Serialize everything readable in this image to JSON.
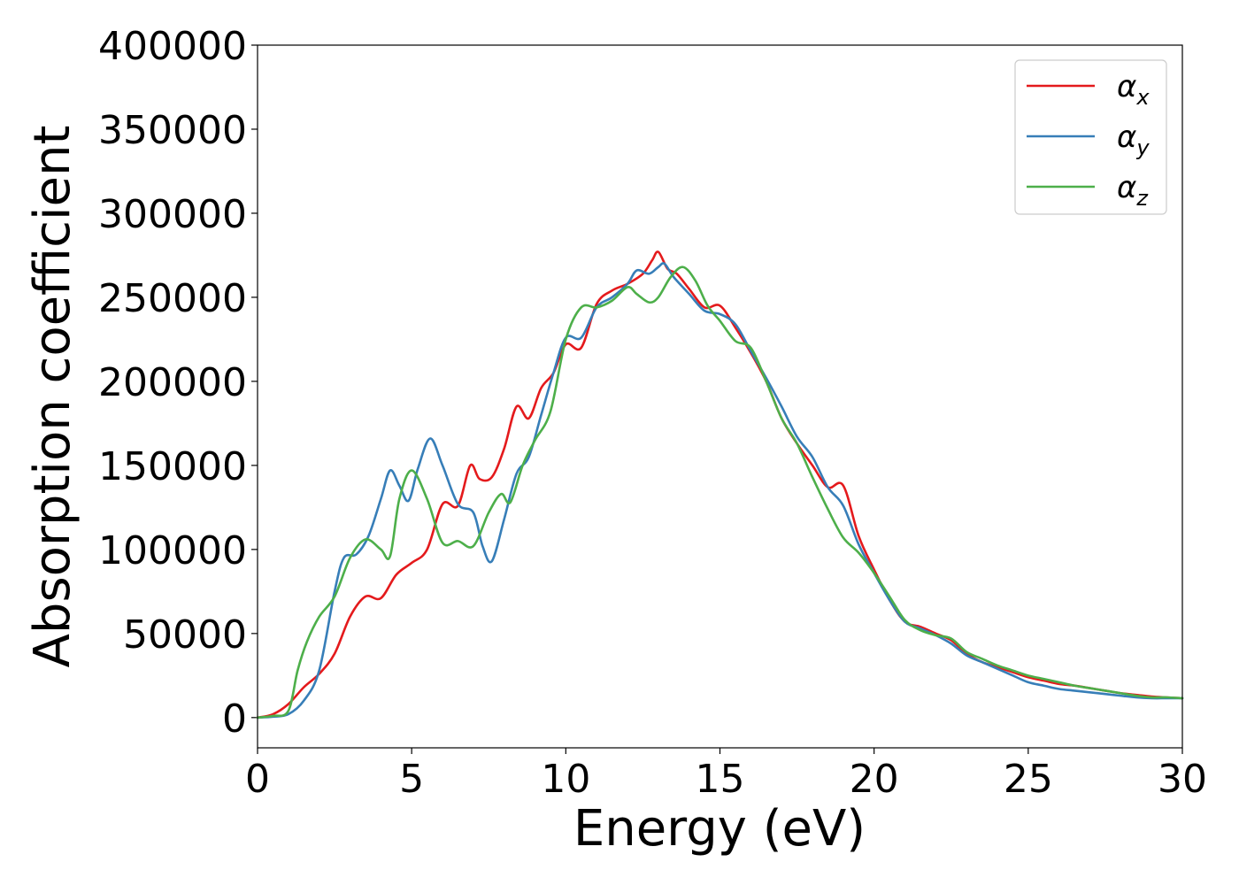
{
  "chart_data": {
    "type": "line",
    "title": "",
    "xlabel": "Energy (eV)",
    "ylabel": "Absorption coefficient",
    "xlim": [
      0,
      30
    ],
    "ylim": [
      -18000,
      400000
    ],
    "xticks": [
      0,
      5,
      10,
      15,
      20,
      25,
      30
    ],
    "yticks": [
      0,
      50000,
      100000,
      150000,
      200000,
      250000,
      300000,
      350000,
      400000
    ],
    "grid": false,
    "legend_position": "top-right",
    "series": [
      {
        "name": "α_x",
        "label_base": "α",
        "label_sub": "x",
        "color": "#e41a1c",
        "points": [
          [
            0,
            0
          ],
          [
            0.5,
            2000
          ],
          [
            1,
            8000
          ],
          [
            1.5,
            18000
          ],
          [
            2,
            26000
          ],
          [
            2.5,
            38000
          ],
          [
            3,
            60000
          ],
          [
            3.5,
            72000
          ],
          [
            4,
            71000
          ],
          [
            4.5,
            85000
          ],
          [
            5,
            92000
          ],
          [
            5.5,
            100000
          ],
          [
            6,
            127000
          ],
          [
            6.5,
            126000
          ],
          [
            6.9,
            150000
          ],
          [
            7.2,
            142000
          ],
          [
            7.6,
            143000
          ],
          [
            8,
            160000
          ],
          [
            8.4,
            185000
          ],
          [
            8.8,
            178000
          ],
          [
            9.2,
            196000
          ],
          [
            9.6,
            205000
          ],
          [
            10,
            222000
          ],
          [
            10.5,
            220000
          ],
          [
            11,
            246000
          ],
          [
            11.5,
            254000
          ],
          [
            12,
            258000
          ],
          [
            12.5,
            264000
          ],
          [
            12.8,
            272000
          ],
          [
            13,
            277000
          ],
          [
            13.3,
            267000
          ],
          [
            13.6,
            264000
          ],
          [
            14,
            255000
          ],
          [
            14.5,
            244000
          ],
          [
            15,
            245000
          ],
          [
            15.5,
            232000
          ],
          [
            16,
            217000
          ],
          [
            16.5,
            200000
          ],
          [
            17,
            178000
          ],
          [
            17.5,
            163000
          ],
          [
            18,
            150000
          ],
          [
            18.5,
            137000
          ],
          [
            19,
            138000
          ],
          [
            19.5,
            108000
          ],
          [
            20,
            88000
          ],
          [
            20.5,
            70000
          ],
          [
            21,
            57000
          ],
          [
            21.5,
            54000
          ],
          [
            22,
            50000
          ],
          [
            22.5,
            46000
          ],
          [
            23,
            38000
          ],
          [
            23.5,
            33000
          ],
          [
            24,
            30000
          ],
          [
            24.5,
            27000
          ],
          [
            25,
            24000
          ],
          [
            25.5,
            22000
          ],
          [
            26,
            20000
          ],
          [
            26.5,
            19000
          ],
          [
            27,
            17500
          ],
          [
            27.5,
            16000
          ],
          [
            28,
            14500
          ],
          [
            28.5,
            13500
          ],
          [
            29,
            12500
          ],
          [
            29.5,
            12000
          ],
          [
            30,
            11500
          ]
        ]
      },
      {
        "name": "α_y",
        "label_base": "α",
        "label_sub": "y",
        "color": "#377eb8",
        "points": [
          [
            0,
            0
          ],
          [
            0.5,
            500
          ],
          [
            1,
            2000
          ],
          [
            1.5,
            10000
          ],
          [
            2,
            28000
          ],
          [
            2.5,
            75000
          ],
          [
            2.8,
            95000
          ],
          [
            3.2,
            97000
          ],
          [
            3.6,
            108000
          ],
          [
            4,
            130000
          ],
          [
            4.3,
            147000
          ],
          [
            4.6,
            138000
          ],
          [
            4.9,
            129000
          ],
          [
            5.2,
            148000
          ],
          [
            5.6,
            166000
          ],
          [
            6,
            150000
          ],
          [
            6.5,
            127000
          ],
          [
            7,
            122000
          ],
          [
            7.3,
            102000
          ],
          [
            7.6,
            93000
          ],
          [
            8,
            118000
          ],
          [
            8.4,
            145000
          ],
          [
            8.8,
            155000
          ],
          [
            9.2,
            180000
          ],
          [
            9.6,
            205000
          ],
          [
            10,
            226000
          ],
          [
            10.5,
            226000
          ],
          [
            11,
            244000
          ],
          [
            11.5,
            250000
          ],
          [
            12,
            258000
          ],
          [
            12.3,
            266000
          ],
          [
            12.7,
            264000
          ],
          [
            13,
            268000
          ],
          [
            13.2,
            270000
          ],
          [
            13.5,
            262000
          ],
          [
            14,
            252000
          ],
          [
            14.5,
            242000
          ],
          [
            15,
            240000
          ],
          [
            15.5,
            234000
          ],
          [
            16,
            218000
          ],
          [
            16.5,
            202000
          ],
          [
            17,
            185000
          ],
          [
            17.5,
            167000
          ],
          [
            18,
            155000
          ],
          [
            18.5,
            137000
          ],
          [
            19,
            126000
          ],
          [
            19.5,
            103000
          ],
          [
            20,
            86000
          ],
          [
            20.5,
            70000
          ],
          [
            21,
            57000
          ],
          [
            21.5,
            53000
          ],
          [
            22,
            49000
          ],
          [
            22.5,
            44000
          ],
          [
            23,
            37000
          ],
          [
            23.5,
            33000
          ],
          [
            24,
            29000
          ],
          [
            24.5,
            25000
          ],
          [
            25,
            21000
          ],
          [
            25.5,
            19000
          ],
          [
            26,
            17000
          ],
          [
            26.5,
            16000
          ],
          [
            27,
            15000
          ],
          [
            27.5,
            14000
          ],
          [
            28,
            13000
          ],
          [
            28.5,
            12000
          ],
          [
            29,
            11500
          ],
          [
            29.5,
            11500
          ],
          [
            30,
            11500
          ]
        ]
      },
      {
        "name": "α_z",
        "label_base": "α",
        "label_sub": "z",
        "color": "#4daf4a",
        "points": [
          [
            0,
            0
          ],
          [
            0.5,
            1000
          ],
          [
            1,
            4000
          ],
          [
            1.3,
            28000
          ],
          [
            1.6,
            45000
          ],
          [
            2,
            60000
          ],
          [
            2.5,
            72000
          ],
          [
            3,
            95000
          ],
          [
            3.5,
            106000
          ],
          [
            4,
            100000
          ],
          [
            4.3,
            96000
          ],
          [
            4.6,
            130000
          ],
          [
            5,
            147000
          ],
          [
            5.5,
            130000
          ],
          [
            6,
            104000
          ],
          [
            6.5,
            105000
          ],
          [
            7,
            102000
          ],
          [
            7.5,
            122000
          ],
          [
            7.9,
            133000
          ],
          [
            8.2,
            128000
          ],
          [
            8.6,
            150000
          ],
          [
            9,
            165000
          ],
          [
            9.5,
            182000
          ],
          [
            10,
            225000
          ],
          [
            10.5,
            244000
          ],
          [
            11,
            244000
          ],
          [
            11.5,
            248000
          ],
          [
            12,
            256000
          ],
          [
            12.3,
            252000
          ],
          [
            12.7,
            247000
          ],
          [
            13,
            250000
          ],
          [
            13.4,
            262000
          ],
          [
            13.8,
            268000
          ],
          [
            14.2,
            260000
          ],
          [
            14.6,
            245000
          ],
          [
            15,
            236000
          ],
          [
            15.5,
            224000
          ],
          [
            16,
            220000
          ],
          [
            16.5,
            200000
          ],
          [
            17,
            178000
          ],
          [
            17.5,
            163000
          ],
          [
            18,
            143000
          ],
          [
            18.5,
            124000
          ],
          [
            19,
            107000
          ],
          [
            19.5,
            98000
          ],
          [
            20,
            86000
          ],
          [
            20.5,
            72000
          ],
          [
            21,
            58000
          ],
          [
            21.5,
            52000
          ],
          [
            22,
            49000
          ],
          [
            22.5,
            47000
          ],
          [
            23,
            39000
          ],
          [
            23.5,
            35000
          ],
          [
            24,
            31000
          ],
          [
            24.5,
            28000
          ],
          [
            25,
            25000
          ],
          [
            25.5,
            23000
          ],
          [
            26,
            21000
          ],
          [
            26.5,
            19000
          ],
          [
            27,
            17500
          ],
          [
            27.5,
            16000
          ],
          [
            28,
            14500
          ],
          [
            28.5,
            13000
          ],
          [
            29,
            12000
          ],
          [
            29.5,
            12000
          ],
          [
            30,
            11500
          ]
        ]
      }
    ]
  }
}
